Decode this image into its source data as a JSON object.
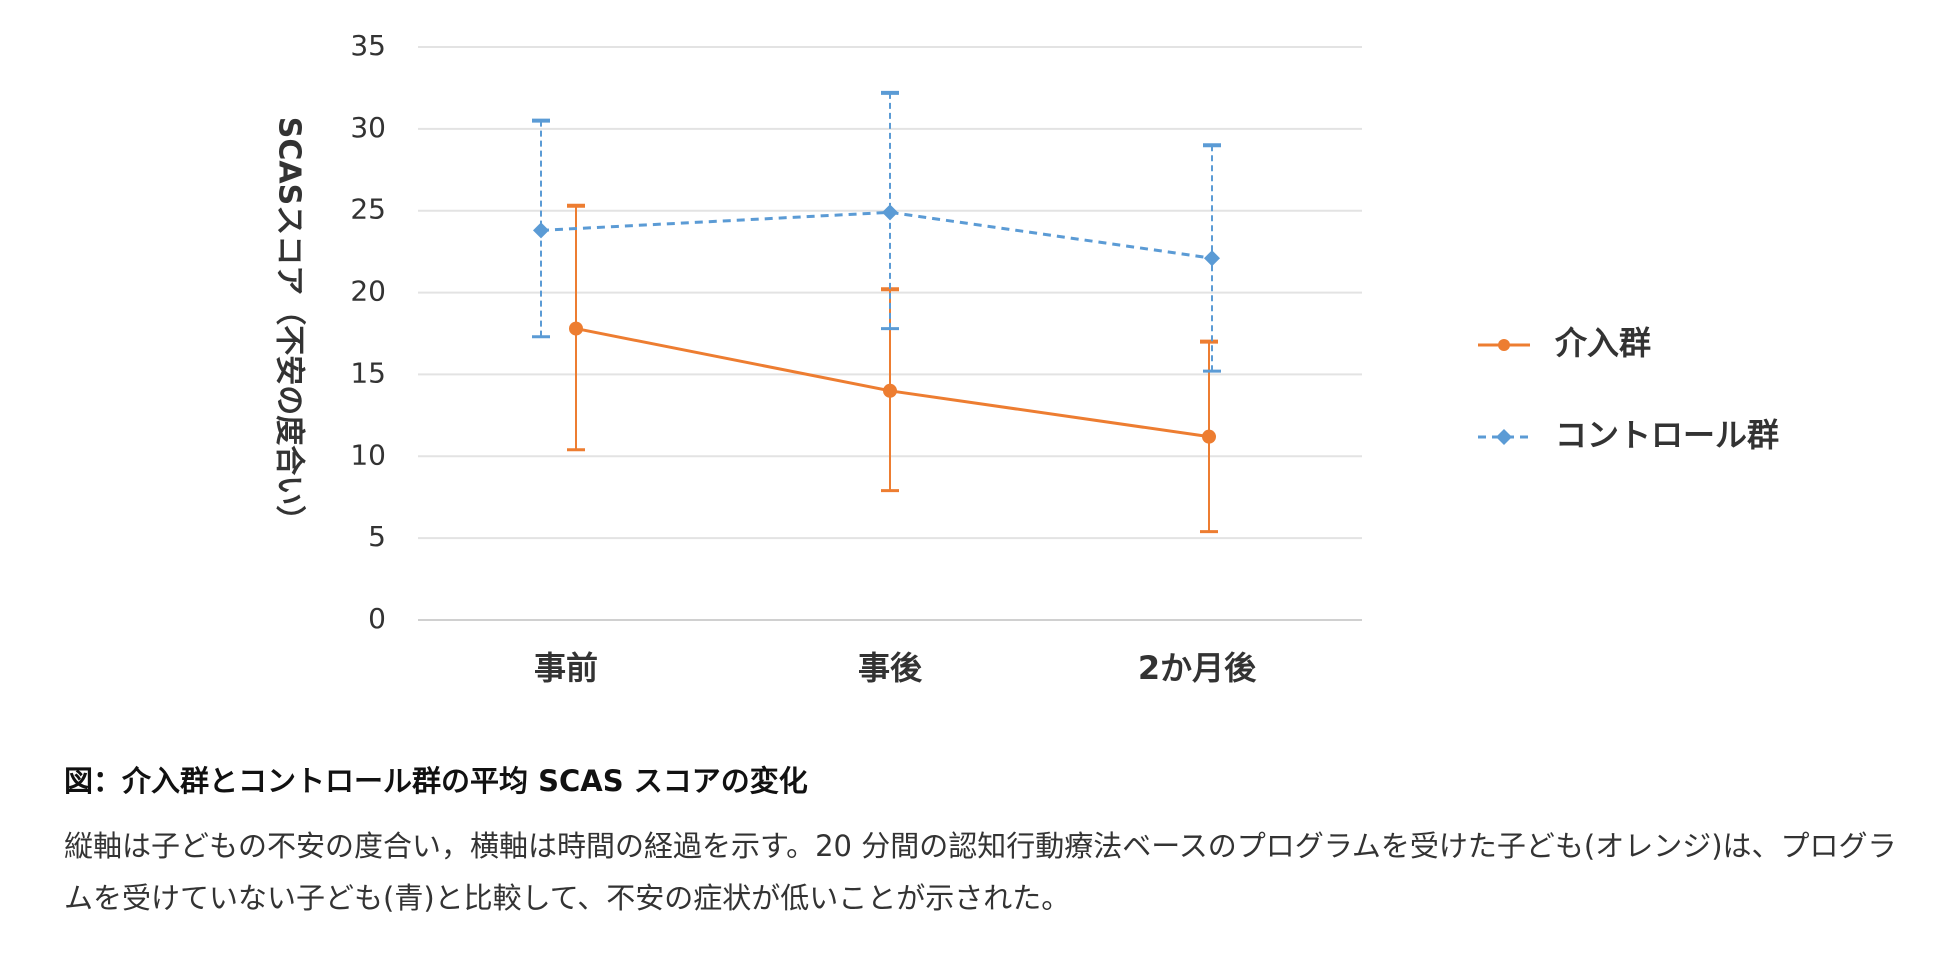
{
  "chart_data": {
    "type": "line",
    "title": "",
    "xlabel": "",
    "ylabel": "SCASスコア（不安の度合い）",
    "categories": [
      "事前",
      "事後",
      "2か月後"
    ],
    "ylim": [
      0,
      35
    ],
    "yticks": [
      0,
      5,
      10,
      15,
      20,
      25,
      30,
      35
    ],
    "grid": true,
    "legend_position": "right",
    "series": [
      {
        "name": "介入群",
        "color": "#ED7D31",
        "line_style": "solid",
        "marker": "circle",
        "values": [
          17.8,
          14.0,
          11.2
        ],
        "error_low": [
          10.4,
          7.9,
          5.4
        ],
        "error_high": [
          25.3,
          20.2,
          17.0
        ]
      },
      {
        "name": "コントロール群",
        "color": "#5B9BD5",
        "line_style": "dashed",
        "marker": "diamond",
        "values": [
          23.8,
          24.9,
          22.1
        ],
        "error_low": [
          17.3,
          17.8,
          15.2
        ],
        "error_high": [
          30.5,
          32.2,
          29.0
        ]
      }
    ]
  },
  "caption": {
    "title": "図：介入群とコントロール群の平均 SCAS スコアの変化",
    "body": "縦軸は子どもの不安の度合い，横軸は時間の経過を示す。20 分間の認知行動療法ベースのプログラムを受けた子ども(オレンジ)は、プログラムを受けていない子ども(青)と比較して、不安の症状が低いことが示された。"
  }
}
